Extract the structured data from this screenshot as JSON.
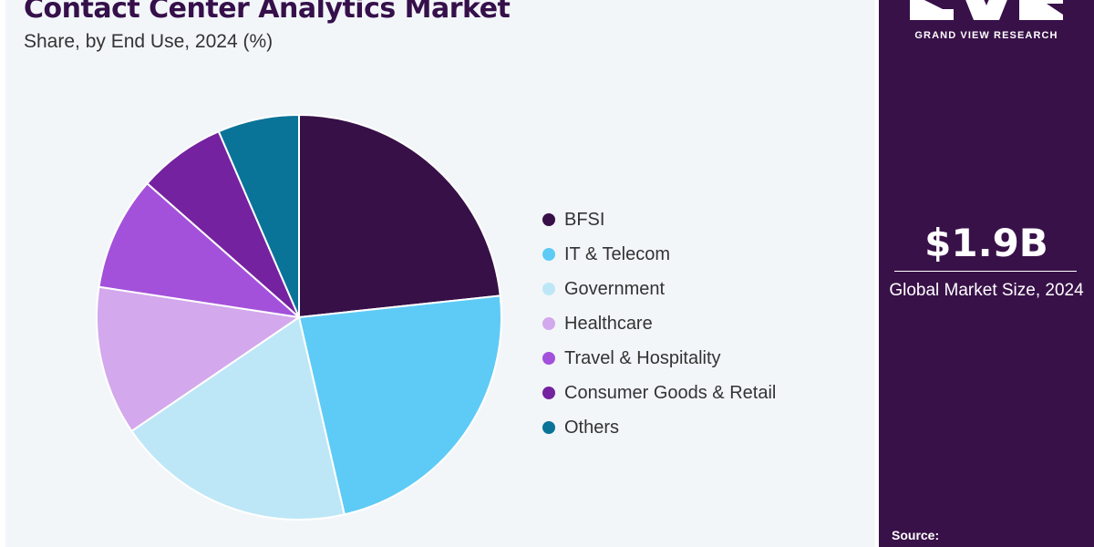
{
  "header": {
    "title": "Contact Center Analytics Market",
    "subtitle": "Share, by End Use, 2024 (%)"
  },
  "chart_data": {
    "type": "pie",
    "title": "Contact Center Analytics Market",
    "subtitle": "Share, by End Use, 2024 (%)",
    "categories": [
      "BFSI",
      "IT & Telecom",
      "Government",
      "Healthcare",
      "Travel & Hospitality",
      "Consumer Goods & Retail",
      "Others"
    ],
    "values": [
      23.3,
      23.1,
      19.1,
      11.9,
      9.1,
      7.0,
      6.5
    ],
    "colors": [
      "#361047",
      "#5ecbf6",
      "#bde7f7",
      "#d3a8ec",
      "#a351da",
      "#74229f",
      "#0a7398"
    ],
    "start_angle_deg": 0,
    "direction": "clockwise",
    "legend_position": "right"
  },
  "sidebar": {
    "brand": "GRAND VIEW RESEARCH",
    "market_size": "$1.9B",
    "market_size_label": "Global Market Size, 2024",
    "source_label": "Source:"
  }
}
